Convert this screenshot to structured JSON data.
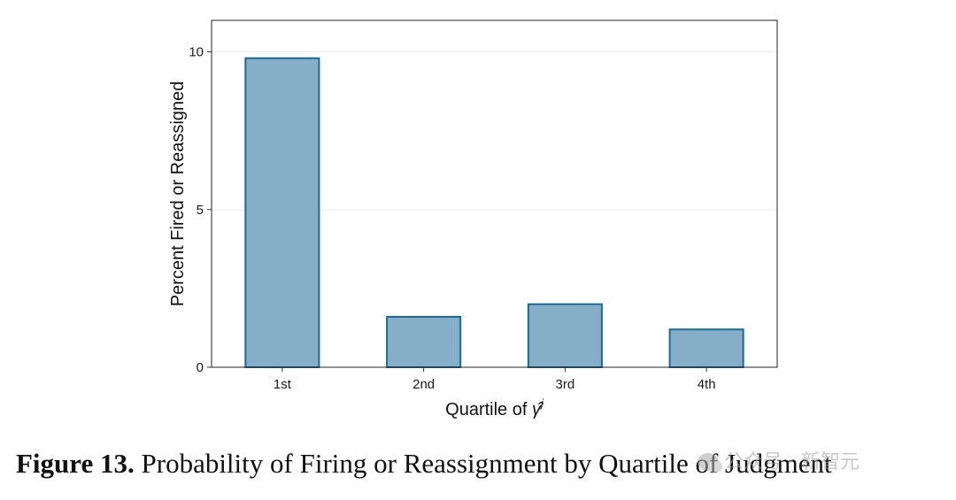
{
  "chart_data": {
    "type": "bar",
    "categories": [
      "1st",
      "2nd",
      "3rd",
      "4th"
    ],
    "values": [
      9.8,
      1.6,
      2.0,
      1.2
    ],
    "xlabel_prefix": "Quartile of ",
    "xlabel_symbol": "γ̂",
    "xlabel_superscript": "j",
    "ylabel": "Percent Fired or Reassigned",
    "ylim": [
      0,
      11
    ],
    "yticks": [
      0,
      5,
      10
    ],
    "grid": true,
    "bar_fill": "#86aec9",
    "bar_stroke": "#1f6a93"
  },
  "caption": {
    "label": "Figure 13.",
    "text": " Probability of Firing or Reassignment by Quartile of Judgment"
  },
  "watermark": {
    "icon": "wechat-icon",
    "text": "公众号 · 新智元"
  }
}
